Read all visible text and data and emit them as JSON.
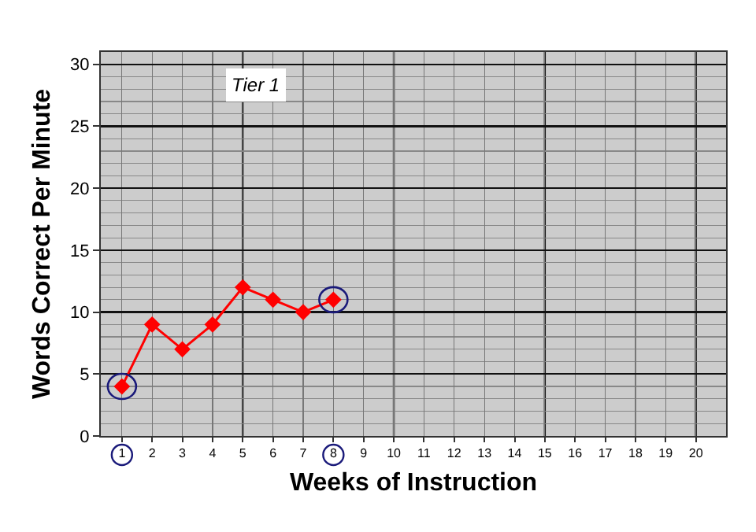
{
  "chart_data": {
    "type": "line",
    "xlabel": "Weeks of Instruction",
    "ylabel": "Words Correct Per Minute",
    "annotations": [
      "Tier 1"
    ],
    "x": [
      1,
      2,
      3,
      4,
      5,
      6,
      7,
      8
    ],
    "series": [
      {
        "color": "#ff0000",
        "values": [
          4,
          9,
          7,
          9,
          12,
          11,
          10,
          11
        ]
      }
    ],
    "xlim": [
      0.3,
      21
    ],
    "xticks": [
      1,
      2,
      3,
      4,
      5,
      6,
      7,
      8,
      9,
      10,
      11,
      12,
      13,
      14,
      15,
      16,
      17,
      18,
      19,
      20
    ],
    "ylim": [
      0,
      31
    ],
    "yticks": [
      0,
      5,
      10,
      15,
      20,
      25,
      30
    ],
    "grid": true,
    "marker": "diamond",
    "line_style": "solid"
  }
}
